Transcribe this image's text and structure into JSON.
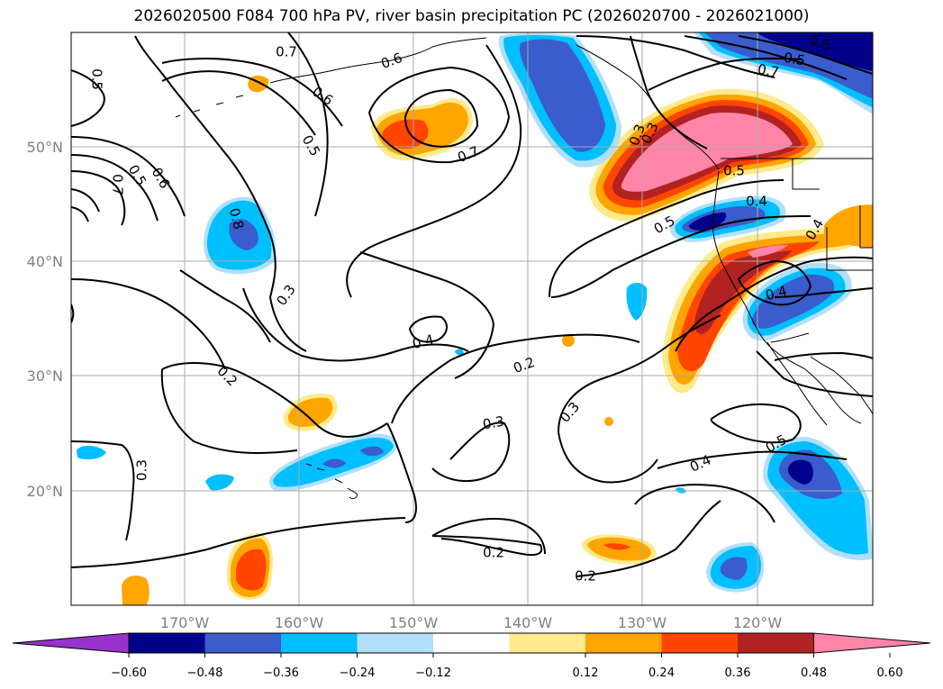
{
  "title": "2026020500 F084 700 hPa PV, river basin precipitation PC (2026020700 - 2026021000)",
  "map": {
    "lon_labels": [
      "170°W",
      "160°W",
      "150°W",
      "140°W",
      "130°W",
      "120°W"
    ],
    "lat_labels": [
      "50°N",
      "40°N",
      "30°N",
      "20°N"
    ],
    "contour_labels": [
      "0.7",
      "0.6",
      "0.5",
      "0.6",
      "0.5",
      "0.7",
      "0.6",
      "0.5",
      "0.7",
      "0.8",
      "0.3",
      "0.4",
      "0.2",
      "0.2",
      "0.3",
      "0.3",
      "0.2",
      "0.3",
      "0.2",
      "0.4",
      "0.5",
      "0.5",
      "0.4",
      "0.4",
      "0.4",
      "0.5",
      "0.3",
      "0.6",
      "0.7",
      "0.5",
      "0.3"
    ]
  },
  "colorbar": {
    "ticks": [
      "−0.60",
      "−0.48",
      "−0.36",
      "−0.24",
      "−0.12",
      "0.12",
      "0.24",
      "0.36",
      "0.48",
      "0.60"
    ],
    "colors": [
      "#9932cc",
      "#00008b",
      "#3a5ccc",
      "#00bfff",
      "#b0e0fa",
      "#ffffff",
      "#ffea8c",
      "#ffa500",
      "#ff4500",
      "#b22222",
      "#ff85a8"
    ]
  }
}
